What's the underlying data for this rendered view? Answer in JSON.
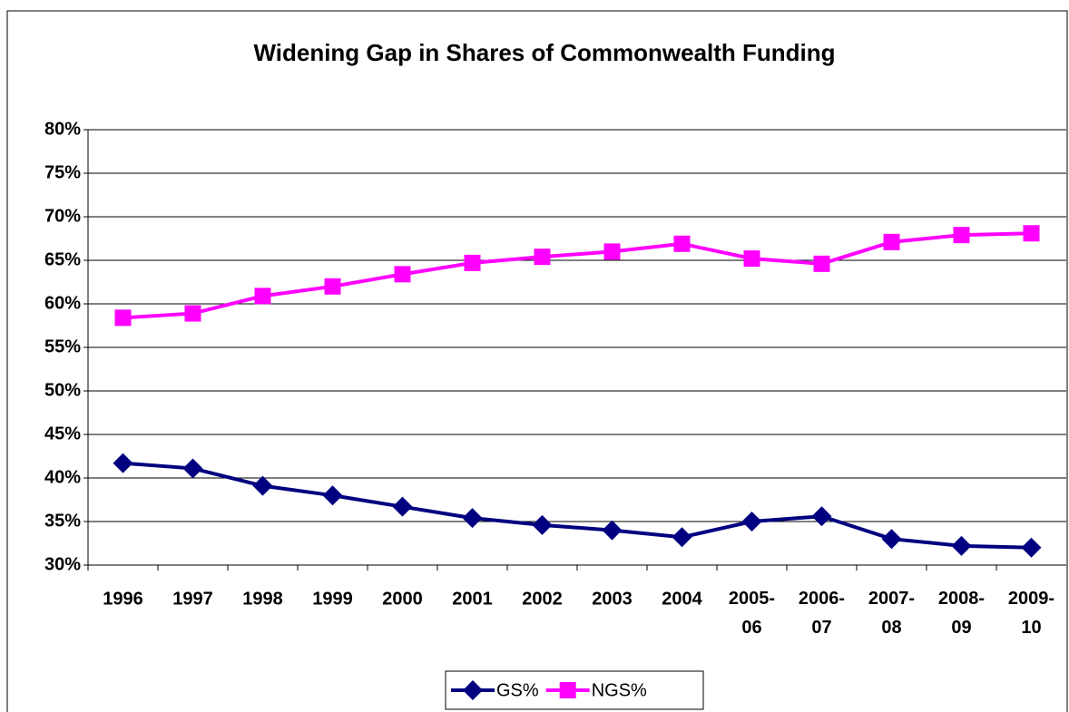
{
  "chart_data": {
    "type": "line",
    "title": "Widening Gap in Shares of Commonwealth Funding",
    "categories": [
      "1996",
      "1997",
      "1998",
      "1999",
      "2000",
      "2001",
      "2002",
      "2003",
      "2004",
      "2005-06",
      "2006-07",
      "2007-08",
      "2008-09",
      "2009-10"
    ],
    "series": [
      {
        "name": "GS%",
        "color": "#000080",
        "marker": "diamond",
        "values": [
          41.7,
          41.1,
          39.1,
          38.0,
          36.7,
          35.4,
          34.6,
          34.0,
          33.2,
          35.0,
          35.6,
          33.0,
          32.2,
          32.0
        ]
      },
      {
        "name": "NGS%",
        "color": "#ff00ff",
        "marker": "square",
        "values": [
          58.4,
          58.9,
          60.9,
          62.0,
          63.4,
          64.7,
          65.4,
          66.0,
          66.9,
          65.2,
          64.6,
          67.1,
          67.9,
          68.1
        ]
      }
    ],
    "ylim": [
      30,
      80
    ],
    "yticks": [
      {
        "value": 30,
        "label": "30%"
      },
      {
        "value": 35,
        "label": "35%"
      },
      {
        "value": 40,
        "label": "40%"
      },
      {
        "value": 45,
        "label": "45%"
      },
      {
        "value": 50,
        "label": "50%"
      },
      {
        "value": 55,
        "label": "55%"
      },
      {
        "value": 60,
        "label": "60%"
      },
      {
        "value": 65,
        "label": "65%"
      },
      {
        "value": 70,
        "label": "70%"
      },
      {
        "value": 75,
        "label": "75%"
      },
      {
        "value": 80,
        "label": "80%"
      }
    ],
    "grid": true,
    "legend": "bottom"
  }
}
